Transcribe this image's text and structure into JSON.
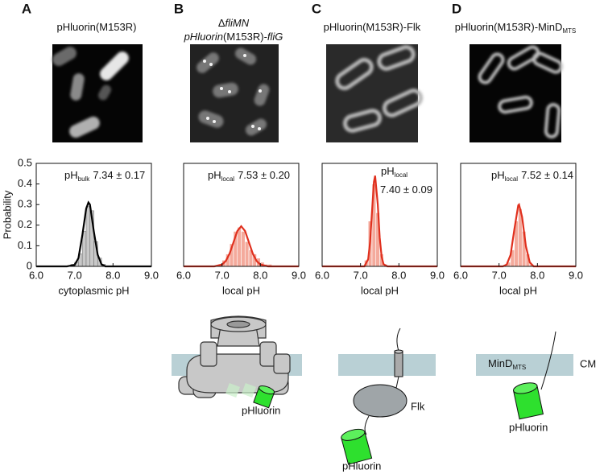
{
  "chart_data": [
    {
      "type": "histogram",
      "panel": "A",
      "title_lines": [
        [
          {
            "text": "pHluorin(M153R)"
          }
        ]
      ],
      "annotation_lines": [
        [
          {
            "text": "pH"
          },
          {
            "text": "bulk",
            "sub": true
          },
          {
            "text": "7.34 ± 0.17"
          }
        ]
      ],
      "xlabel": "cytoplasmic pH",
      "ylabel": "Probability",
      "xlim": [
        6.0,
        9.0
      ],
      "xticks": [
        {
          "value": 6,
          "label": "6.0"
        },
        {
          "value": 7,
          "label": "7.0"
        },
        {
          "value": 8,
          "label": "8.0"
        },
        {
          "value": 9,
          "label": "9.0"
        }
      ],
      "ylim": [
        0,
        0.5
      ],
      "yticks": [
        0,
        0.1,
        0.2,
        0.3,
        0.4,
        0.5
      ],
      "bins": [
        6.9,
        7.0,
        7.1,
        7.2,
        7.3,
        7.4,
        7.5,
        7.6,
        7.7,
        7.8
      ],
      "counts": [
        0.01,
        0.02,
        0.06,
        0.17,
        0.29,
        0.27,
        0.12,
        0.04,
        0.01
      ],
      "color": "#c8c8c8",
      "fit": {
        "color": "#000000",
        "x": [
          6.0,
          6.8,
          7.0,
          7.1,
          7.2,
          7.3,
          7.36,
          7.4,
          7.5,
          7.6,
          7.7,
          7.8,
          9.0
        ],
        "values": [
          0,
          0,
          0.007,
          0.04,
          0.15,
          0.28,
          0.31,
          0.3,
          0.17,
          0.057,
          0.01,
          0,
          0
        ]
      }
    },
    {
      "type": "histogram",
      "panel": "B",
      "title_lines": [
        [
          {
            "text": "Δ"
          },
          {
            "text": "fliMN",
            "italic": true
          }
        ],
        [
          {
            "text": "pHluorin",
            "italic": true
          },
          {
            "text": "(M153R)-"
          },
          {
            "text": "fliG",
            "italic": true
          }
        ]
      ],
      "annotation_lines": [
        [
          {
            "text": "pH"
          },
          {
            "text": "local",
            "sub": true
          },
          {
            "text": "7.53 ± 0.20"
          }
        ]
      ],
      "xlabel": "local pH",
      "xlim": [
        6.0,
        9.0
      ],
      "xticks": [
        {
          "value": 6,
          "label": "6.0"
        },
        {
          "value": 7,
          "label": "7.0"
        },
        {
          "value": 8,
          "label": "8.0"
        },
        {
          "value": 9,
          "label": "9.0"
        }
      ],
      "ylim": [
        0,
        0.5
      ],
      "bins": [
        6.9,
        7.0,
        7.1,
        7.2,
        7.3,
        7.4,
        7.5,
        7.6,
        7.7,
        7.8,
        7.9,
        8.0,
        8.1,
        8.2,
        8.3
      ],
      "counts": [
        0.01,
        0.03,
        0.06,
        0.11,
        0.17,
        0.19,
        0.17,
        0.12,
        0.08,
        0.06,
        0.04,
        0.02,
        0.01,
        0.01
      ],
      "color": "#f4aa9c",
      "fit": {
        "color": "#e0301e",
        "x": [
          6.0,
          6.8,
          7.0,
          7.1,
          7.2,
          7.3,
          7.4,
          7.5,
          7.6,
          7.7,
          7.8,
          7.9,
          8.0,
          8.2,
          9.0
        ],
        "values": [
          0,
          0,
          0.009,
          0.026,
          0.063,
          0.118,
          0.172,
          0.195,
          0.172,
          0.118,
          0.063,
          0.026,
          0.009,
          0,
          0
        ]
      }
    },
    {
      "type": "histogram",
      "panel": "C",
      "title_lines": [
        [
          {
            "text": "pHluorin(M153R)-Flk"
          }
        ]
      ],
      "annotation_lines": [
        [
          {
            "text": "pH"
          },
          {
            "text": "local",
            "sub": true
          }
        ],
        [
          {
            "text": "7.40 ± 0.09"
          }
        ]
      ],
      "xlabel": "local pH",
      "xlim": [
        6.0,
        9.0
      ],
      "xticks": [
        {
          "value": 6,
          "label": "6.0"
        },
        {
          "value": 7,
          "label": "7.0"
        },
        {
          "value": 8,
          "label": "8.0"
        },
        {
          "value": 9,
          "label": "9.0"
        }
      ],
      "ylim": [
        0,
        0.5
      ],
      "bins": [
        7.1,
        7.2,
        7.3,
        7.4,
        7.5,
        7.6,
        7.7
      ],
      "counts": [
        0.03,
        0.22,
        0.4,
        0.26,
        0.06,
        0.01
      ],
      "color": "#f4aa9c",
      "fit": {
        "color": "#e0301e",
        "x": [
          6.0,
          7.1,
          7.2,
          7.25,
          7.3,
          7.35,
          7.38,
          7.45,
          7.5,
          7.55,
          7.6,
          7.7,
          9.0
        ],
        "values": [
          0,
          0,
          0.035,
          0.12,
          0.27,
          0.41,
          0.44,
          0.3,
          0.14,
          0.046,
          0.01,
          0,
          0
        ]
      }
    },
    {
      "type": "histogram",
      "panel": "D",
      "title_lines": [
        [
          {
            "text": "pHluorin(M153R)-MinD"
          },
          {
            "text": "MTS",
            "sub": true
          }
        ]
      ],
      "annotation_lines": [
        [
          {
            "text": "pH"
          },
          {
            "text": "local",
            "sub": true
          },
          {
            "text": "7.52 ± 0.14"
          }
        ]
      ],
      "xlabel": "local pH",
      "xlim": [
        6.0,
        9.0
      ],
      "xticks": [
        {
          "value": 6,
          "label": "6.0"
        },
        {
          "value": 7,
          "label": "7.0"
        },
        {
          "value": 8,
          "label": "8.0"
        },
        {
          "value": 9,
          "label": "9.0"
        }
      ],
      "ylim": [
        0,
        0.5
      ],
      "bins": [
        7.2,
        7.3,
        7.4,
        7.5,
        7.6,
        7.7,
        7.8,
        7.9
      ],
      "counts": [
        0.02,
        0.08,
        0.22,
        0.28,
        0.17,
        0.06,
        0.01
      ],
      "color": "#f4aa9c",
      "fit": {
        "color": "#e0301e",
        "x": [
          6.0,
          7.1,
          7.2,
          7.3,
          7.4,
          7.5,
          7.52,
          7.6,
          7.7,
          7.8,
          7.9,
          9.0
        ],
        "values": [
          0,
          0,
          0.009,
          0.056,
          0.18,
          0.296,
          0.3,
          0.24,
          0.098,
          0.02,
          0,
          0
        ]
      }
    }
  ],
  "diagrams": {
    "motor": {
      "label": "pHluorin"
    },
    "flk": {
      "protein": "Flk",
      "label": "pHluorin"
    },
    "mind": {
      "anchor": "MinD",
      "anchor_sub": "MTS",
      "membrane": "CM",
      "label": "pHluorin"
    }
  }
}
